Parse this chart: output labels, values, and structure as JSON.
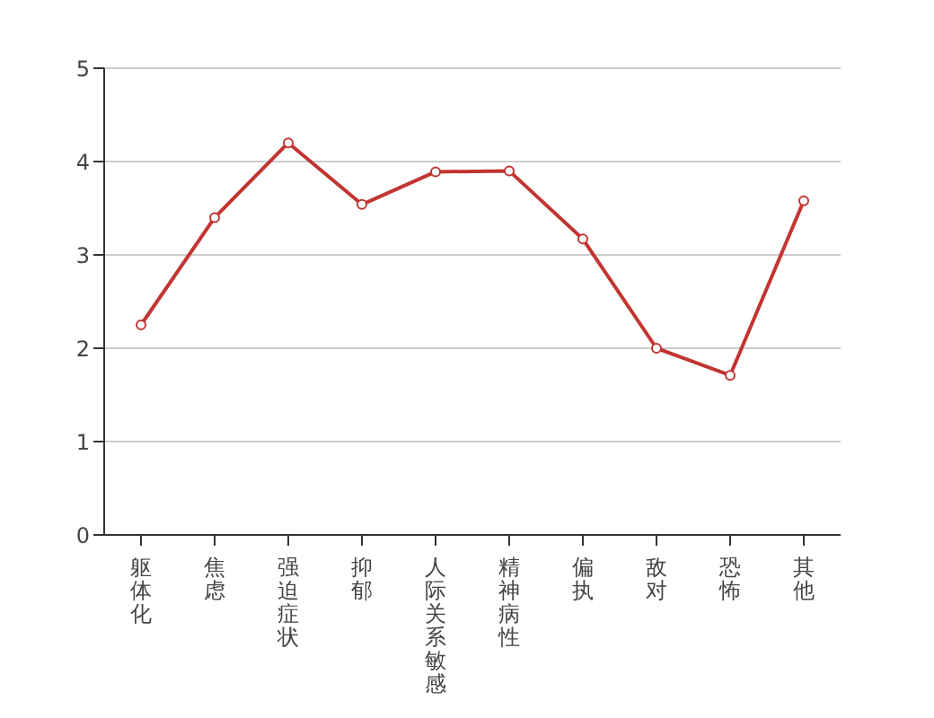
{
  "chart_data": {
    "type": "line",
    "categories": [
      "躯体化",
      "焦虑",
      "强迫症状",
      "抑郁",
      "人际关系敏感",
      "精神病性",
      "偏执",
      "敌对",
      "恐怖",
      "其他"
    ],
    "series": [
      {
        "color": "#c23531",
        "values": [
          2.25,
          3.4,
          4.2,
          3.54,
          3.89,
          3.9,
          3.17,
          2.0,
          1.71,
          3.58
        ]
      }
    ],
    "ylim": [
      0,
      5
    ],
    "yticks": [
      0,
      1,
      2,
      3,
      4,
      5
    ],
    "grid": "y",
    "marker": "circle",
    "line_style": "solid"
  }
}
